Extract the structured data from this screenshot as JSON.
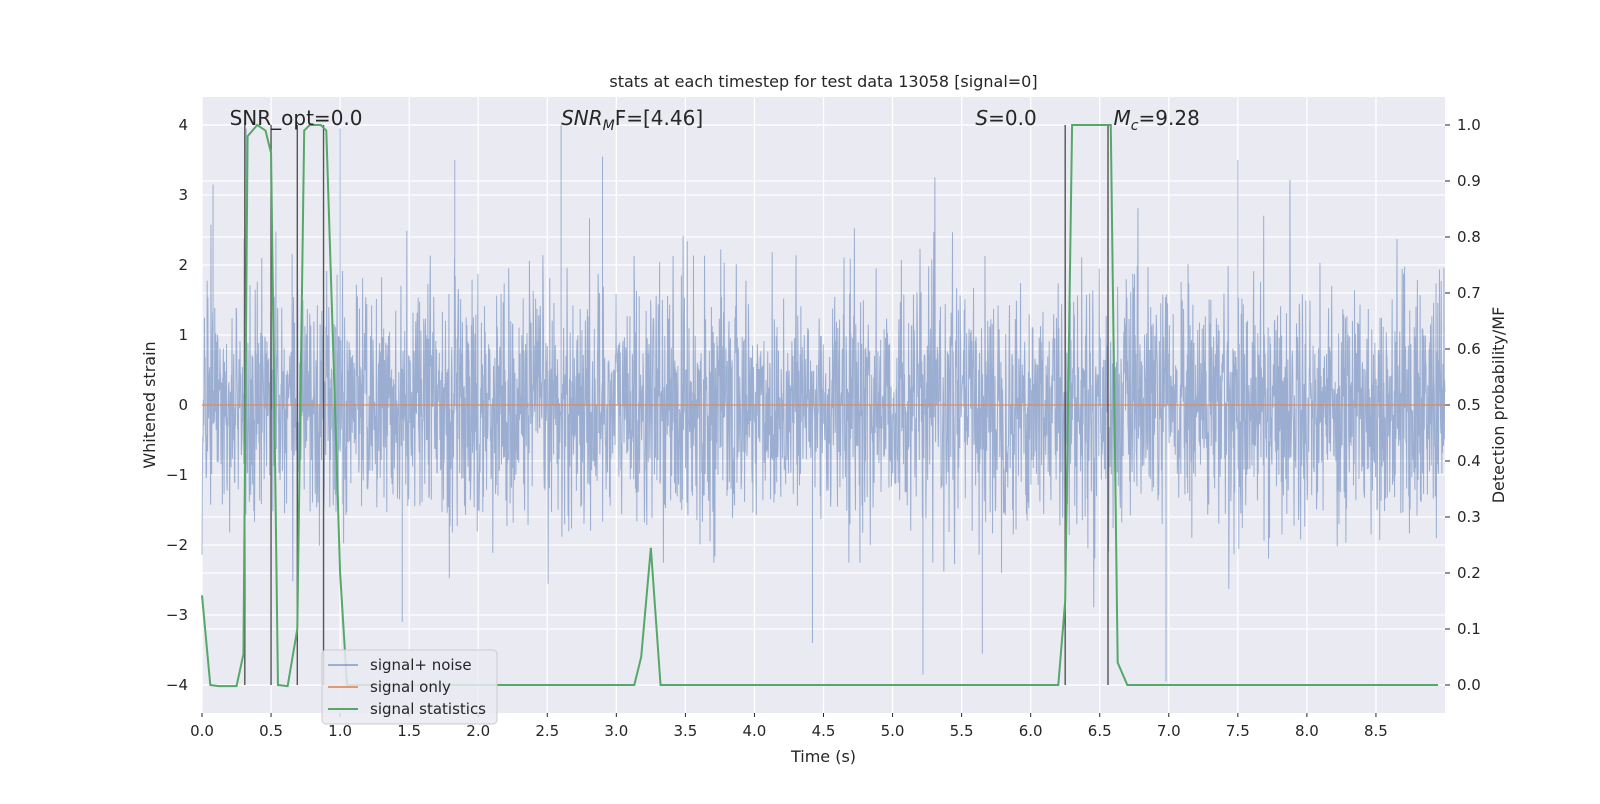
{
  "chart_data": {
    "type": "line",
    "title": "stats at each timestep for test data 13058 [signal=0]",
    "xlabel": "Time (s)",
    "ylabel_left": "Whitened strain",
    "ylabel_right": "Detection probability/MF",
    "xlim": [
      0.0,
      9.0
    ],
    "ylim_left": [
      -4.4,
      4.4
    ],
    "ylim_right": [
      -0.05,
      1.05
    ],
    "x_ticks": [
      0.0,
      0.5,
      1.0,
      1.5,
      2.0,
      2.5,
      3.0,
      3.5,
      4.0,
      4.5,
      5.0,
      5.5,
      6.0,
      6.5,
      7.0,
      7.5,
      8.0,
      8.5
    ],
    "x_tick_labels": [
      "0.0",
      "0.5",
      "1.0",
      "1.5",
      "2.0",
      "2.5",
      "3.0",
      "3.5",
      "4.0",
      "4.5",
      "5.0",
      "5.5",
      "6.0",
      "6.5",
      "7.0",
      "7.5",
      "8.0",
      "8.5"
    ],
    "y_left_ticks": [
      -4,
      -3,
      -2,
      -1,
      0,
      1,
      2,
      3,
      4
    ],
    "y_left_tick_labels": [
      "−4",
      "−3",
      "−2",
      "−1",
      "0",
      "1",
      "2",
      "3",
      "4"
    ],
    "y_right_ticks": [
      0.0,
      0.1,
      0.2,
      0.3,
      0.4,
      0.5,
      0.6,
      0.7,
      0.8,
      0.9,
      1.0
    ],
    "y_right_tick_labels": [
      "0.0",
      "0.1",
      "0.2",
      "0.3",
      "0.4",
      "0.5",
      "0.6",
      "0.7",
      "0.8",
      "0.9",
      "1.0"
    ],
    "grid": true,
    "style": "seaborn-darkgrid",
    "legend_placement": "lower-left",
    "annotations": [
      {
        "prefix": "SNR_opt=0.0",
        "italic": "",
        "sub": "",
        "suffix": "",
        "x": 0.2
      },
      {
        "prefix": "",
        "italic": "SNR",
        "sub": "M",
        "suffix": "F=[4.46]",
        "x": 2.6
      },
      {
        "prefix": "",
        "italic": "S",
        "sub": "",
        "suffix": "=0.0",
        "x": 5.6
      },
      {
        "prefix": "",
        "italic": "M",
        "sub": "c",
        "suffix": "=9.28",
        "x": 6.6
      }
    ],
    "series": [
      {
        "name": "signal+ noise",
        "color": "#4c72b0",
        "axis": "left",
        "noise_sigma": 0.85,
        "x_range": [
          0.0,
          9.0
        ],
        "spikes": [
          {
            "x": 0.08,
            "y": 3.15
          },
          {
            "x": 0.32,
            "y": 3.95
          },
          {
            "x": 1.0,
            "y": 3.95
          },
          {
            "x": 1.83,
            "y": 3.5
          },
          {
            "x": 2.6,
            "y": 4.0
          },
          {
            "x": 2.9,
            "y": 3.55
          },
          {
            "x": 5.22,
            "y": -3.85
          },
          {
            "x": 5.65,
            "y": -3.55
          },
          {
            "x": 6.98,
            "y": -3.95
          },
          {
            "x": 7.5,
            "y": 3.5
          },
          {
            "x": 4.42,
            "y": -3.4
          },
          {
            "x": 1.45,
            "y": -3.1
          }
        ]
      },
      {
        "name": "signal only",
        "color": "#dd8452",
        "axis": "left",
        "x": [
          0.0,
          9.0
        ],
        "y": [
          0.0,
          0.0
        ]
      },
      {
        "name": "signal statistics",
        "color": "#55a868",
        "axis": "right",
        "x": [
          0.0,
          0.06,
          0.12,
          0.25,
          0.3,
          0.33,
          0.4,
          0.46,
          0.5,
          0.55,
          0.62,
          0.69,
          0.74,
          0.78,
          0.86,
          0.9,
          0.95,
          1.0,
          1.05,
          1.1,
          3.13,
          3.18,
          3.25,
          3.32,
          3.38,
          6.2,
          6.25,
          6.3,
          6.55,
          6.58,
          6.63,
          6.7,
          8.95
        ],
        "y": [
          0.16,
          0.0,
          -0.002,
          -0.002,
          0.055,
          0.98,
          1.0,
          0.99,
          0.95,
          0.0,
          -0.002,
          0.1,
          0.99,
          1.0,
          1.0,
          0.99,
          0.6,
          0.2,
          0.0,
          0.0,
          0.0,
          0.05,
          0.245,
          0.0,
          0.0,
          0.0,
          0.15,
          1.0,
          1.0,
          1.0,
          0.04,
          0.0,
          0.0
        ]
      }
    ],
    "vertical_markers": [
      {
        "x": 0.31,
        "y_from": -4.0,
        "y_to": 4.0
      },
      {
        "x": 0.5,
        "y_from": -4.0,
        "y_to": 4.0
      },
      {
        "x": 0.69,
        "y_from": -4.0,
        "y_to": 4.0
      },
      {
        "x": 0.88,
        "y_from": -4.0,
        "y_to": 4.0
      },
      {
        "x": 6.25,
        "y_from": -4.0,
        "y_to": 4.0
      },
      {
        "x": 6.56,
        "y_from": -4.0,
        "y_to": 4.0
      }
    ]
  }
}
